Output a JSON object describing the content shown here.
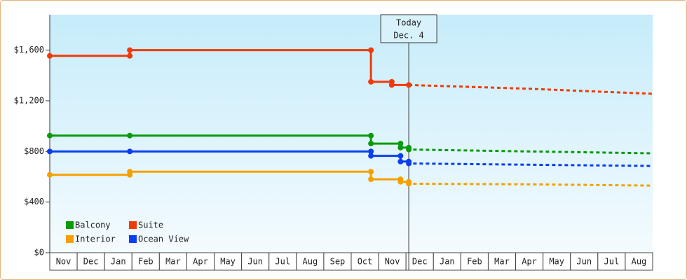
{
  "chart_data": {
    "type": "line",
    "categories": [
      "Nov",
      "Dec",
      "Jan",
      "Feb",
      "Mar",
      "Apr",
      "May",
      "Jun",
      "Jul",
      "Aug",
      "Sep",
      "Oct",
      "Nov",
      "Dec",
      "Jan",
      "Feb",
      "Mar",
      "Apr",
      "May",
      "Jun",
      "Jul",
      "Aug"
    ],
    "xlim": [
      0,
      22
    ],
    "ylim": [
      0,
      1880
    ],
    "yticks": [
      {
        "value": 0,
        "label": "$0"
      },
      {
        "value": 400,
        "label": "$400"
      },
      {
        "value": 800,
        "label": "$800"
      },
      {
        "value": 1200,
        "label": "$1,200"
      },
      {
        "value": 1600,
        "label": "$1,600"
      }
    ],
    "today": {
      "x": 13.1,
      "label": "Today",
      "date": "Dec. 4"
    },
    "series": [
      {
        "name": "Balcony",
        "color": "#0a9a0a",
        "x": [
          0,
          2.92,
          11.72,
          11.72,
          12.8,
          12.8,
          13.1,
          13.1,
          17.5,
          22
        ],
        "values": [
          925,
          925,
          925,
          862,
          862,
          830,
          830,
          815,
          800,
          785
        ]
      },
      {
        "name": "Suite",
        "color": "#f03a0a",
        "x": [
          0,
          2.92,
          2.92,
          11.72,
          11.72,
          12.48,
          12.48,
          13.1,
          17.5,
          22
        ],
        "values": [
          1555,
          1555,
          1600,
          1600,
          1350,
          1350,
          1325,
          1325,
          1295,
          1255
        ]
      },
      {
        "name": "Interior",
        "color": "#f5a000",
        "x": [
          0,
          2.92,
          2.92,
          11.72,
          11.72,
          12.8,
          12.8,
          13.1,
          13.1,
          17.5,
          22
        ],
        "values": [
          615,
          615,
          640,
          640,
          580,
          580,
          560,
          560,
          545,
          540,
          530
        ]
      },
      {
        "name": "Ocean View",
        "color": "#0a3ef0",
        "x": [
          0,
          2.92,
          11.72,
          11.72,
          12.8,
          12.8,
          13.1,
          13.1,
          17.5,
          22
        ],
        "values": [
          800,
          800,
          800,
          765,
          765,
          720,
          720,
          705,
          695,
          685
        ]
      }
    ]
  }
}
